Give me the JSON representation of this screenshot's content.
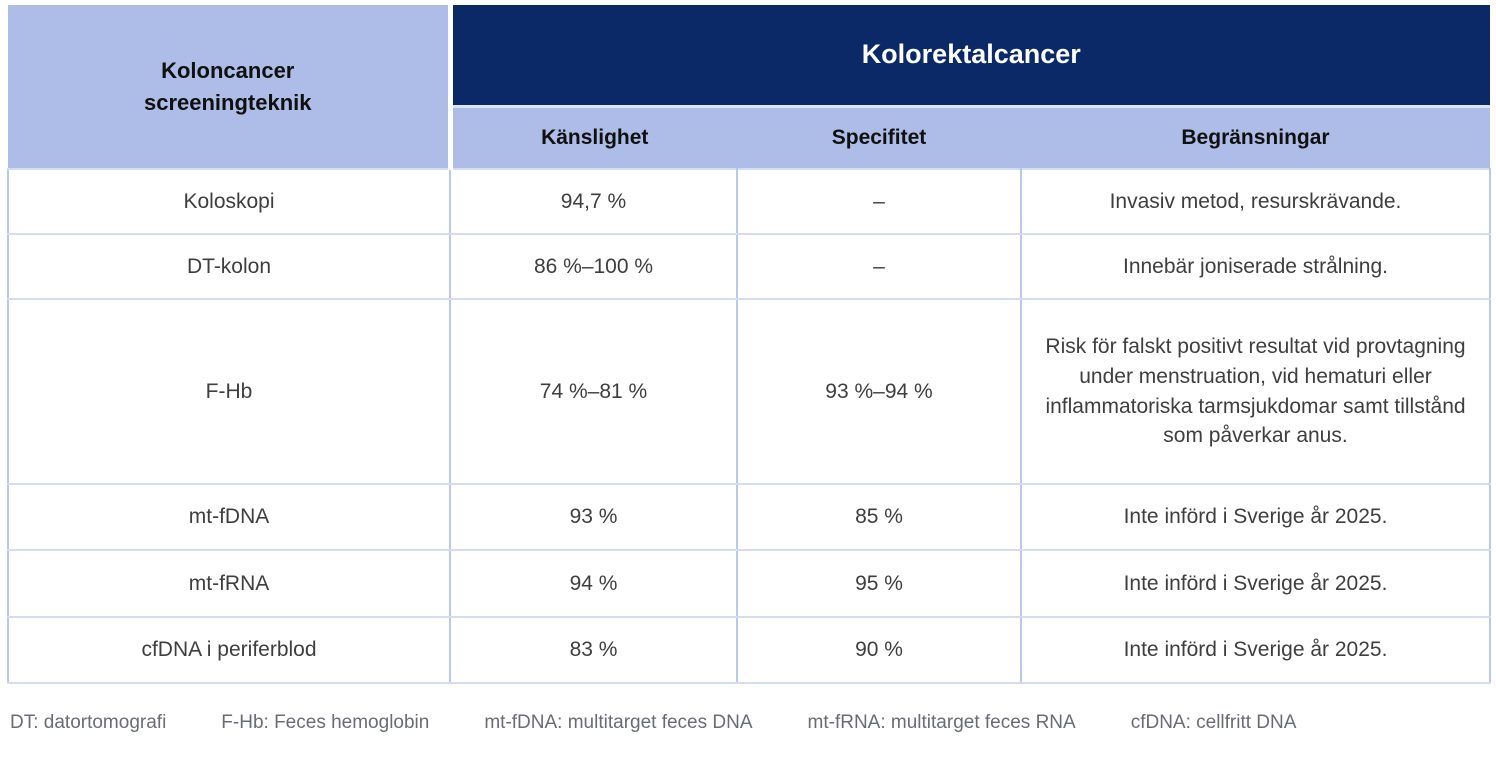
{
  "table": {
    "corner": {
      "line1": "Koloncancer",
      "line2": "screeningteknik"
    },
    "group_header": "Kolorektalcancer",
    "sub_headers": [
      "Känslighet",
      "Specifitet",
      "Begränsningar"
    ],
    "rows": [
      {
        "technique": "Koloskopi",
        "sensitivity": "94,7 %",
        "specificity": "–",
        "limitations": "Invasiv metod, resurskrävande."
      },
      {
        "technique": "DT-kolon",
        "sensitivity": "86 %–100 %",
        "specificity": "–",
        "limitations": "Innebär joniserade strålning."
      },
      {
        "technique": "F-Hb",
        "sensitivity": "74 %–81 %",
        "specificity": "93 %–94 %",
        "limitations": "Risk för falskt positivt resultat vid provtagning under menstruation, vid hematuri eller inflammatoriska tarmsjukdomar samt tillstånd som påverkar anus."
      },
      {
        "technique": "mt-fDNA",
        "sensitivity": "93 %",
        "specificity": "85 %",
        "limitations": "Inte införd i Sverige år 2025."
      },
      {
        "technique": "mt-fRNA",
        "sensitivity": "94 %",
        "specificity": "95 %",
        "limitations": "Inte införd i Sverige år 2025."
      },
      {
        "technique": "cfDNA i periferblod",
        "sensitivity": "83 %",
        "specificity": "90 %",
        "limitations": "Inte införd i Sverige år 2025."
      }
    ]
  },
  "footnotes": [
    "DT: datortomografi",
    "F-Hb: Feces hemoglobin",
    "mt-fDNA: multitarget feces DNA",
    "mt-fRNA: multitarget feces RNA",
    "cfDNA: cellfritt DNA"
  ],
  "colors": {
    "header_navy": "#0b2966",
    "header_periwinkle": "#aebde8",
    "border_vertical": "#b9c8ec",
    "border_horizontal": "#d3dcf2",
    "body_text": "#3e3e40",
    "group_header_text": "#ffffff",
    "footnote_text": "#696c73",
    "background": "#ffffff"
  }
}
